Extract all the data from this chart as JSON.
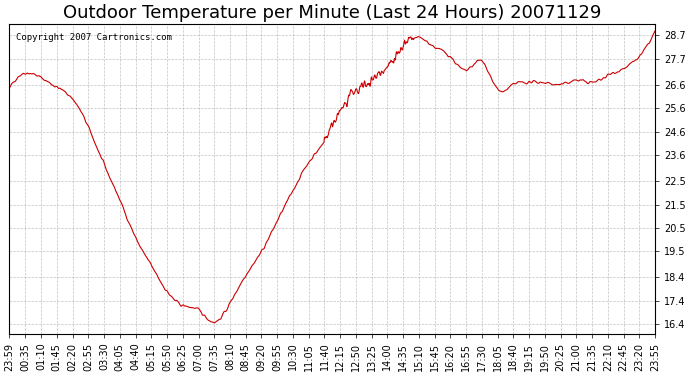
{
  "title": "Outdoor Temperature per Minute (Last 24 Hours) 20071129",
  "copyright_text": "Copyright 2007 Cartronics.com",
  "line_color": "#cc0000",
  "bg_color": "#ffffff",
  "plot_bg_color": "#ffffff",
  "grid_color": "#aaaaaa",
  "grid_style": "--",
  "ylim": [
    16.0,
    29.2
  ],
  "yticks": [
    16.4,
    17.4,
    18.4,
    19.5,
    20.5,
    21.5,
    22.5,
    23.6,
    24.6,
    25.6,
    26.6,
    27.7,
    28.7
  ],
  "xlabel": "",
  "ylabel": "",
  "title_fontsize": 13,
  "tick_fontsize": 7,
  "xtick_labels": [
    "23:59",
    "00:35",
    "01:10",
    "01:45",
    "02:20",
    "02:55",
    "03:30",
    "04:05",
    "04:40",
    "05:15",
    "05:50",
    "06:25",
    "07:00",
    "07:35",
    "08:10",
    "08:45",
    "09:20",
    "09:55",
    "10:30",
    "11:05",
    "11:40",
    "12:15",
    "12:50",
    "13:25",
    "14:00",
    "14:35",
    "15:10",
    "15:45",
    "16:20",
    "16:55",
    "17:30",
    "18:05",
    "18:40",
    "19:15",
    "19:50",
    "20:25",
    "21:00",
    "21:35",
    "22:10",
    "22:45",
    "23:20",
    "23:55"
  ],
  "key_times": [
    0,
    36,
    71,
    106,
    141,
    176,
    211,
    246,
    281,
    316,
    351,
    386,
    421,
    456,
    491,
    526,
    561,
    596,
    631,
    666,
    701,
    736,
    771,
    806,
    841,
    876,
    911,
    946,
    981,
    1016,
    1051,
    1086,
    1121,
    1156,
    1191,
    1226,
    1261,
    1296,
    1331,
    1366,
    1401,
    1436
  ],
  "key_values": [
    26.4,
    27.1,
    26.9,
    26.5,
    26.0,
    24.8,
    23.2,
    21.7,
    20.1,
    18.9,
    17.8,
    17.2,
    17.0,
    16.5,
    17.3,
    18.5,
    19.5,
    20.8,
    22.1,
    23.3,
    24.2,
    25.5,
    26.3,
    26.8,
    27.4,
    28.2,
    28.6,
    28.2,
    27.8,
    27.2,
    27.6,
    26.4,
    26.6,
    26.7,
    26.7,
    26.6,
    26.8,
    26.7,
    27.0,
    27.3,
    27.8,
    28.9
  ]
}
